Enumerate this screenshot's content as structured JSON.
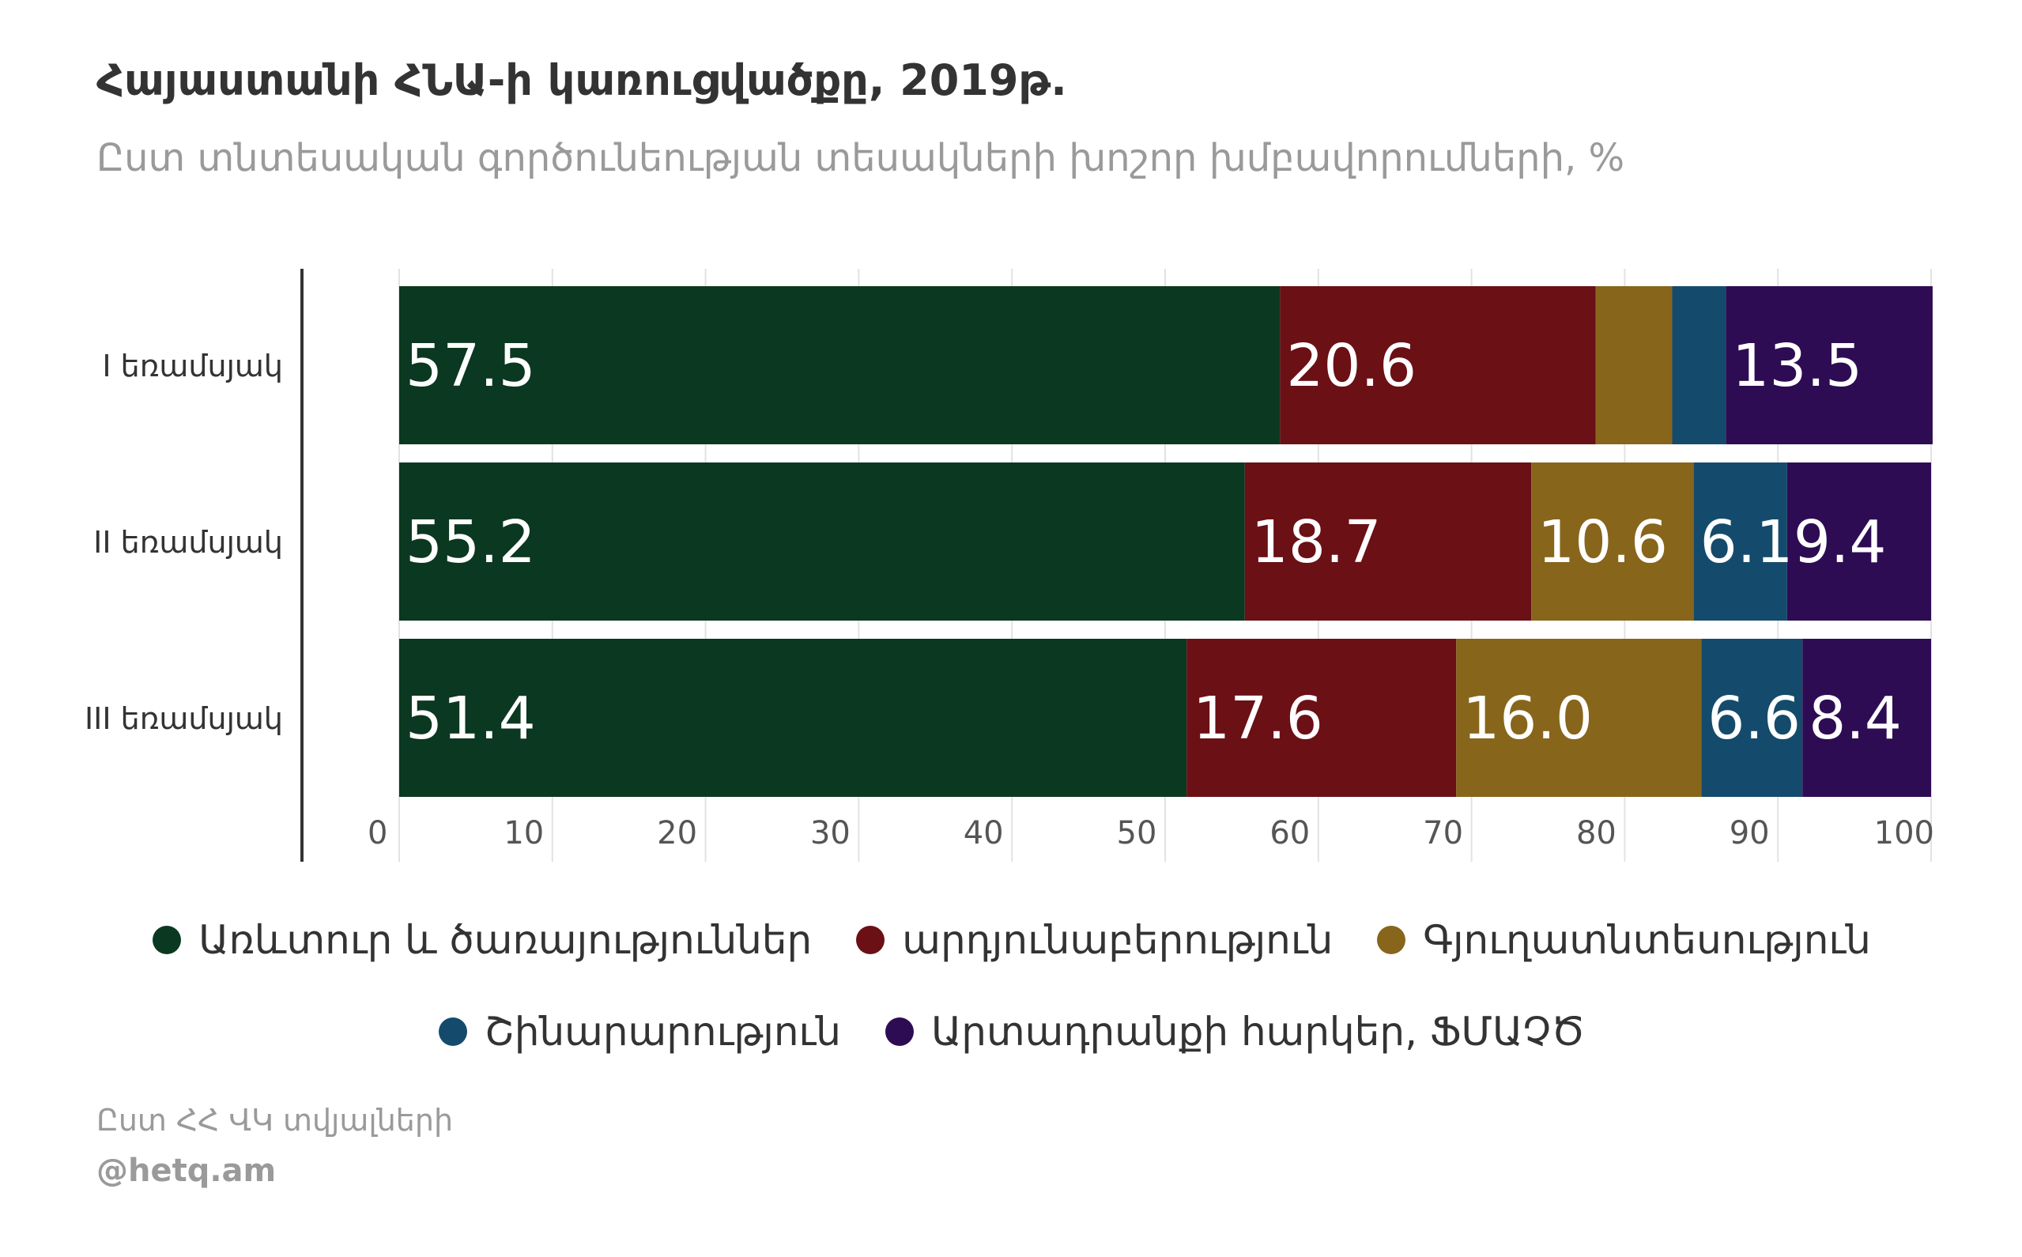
{
  "title": "Հայաստանի ՀՆԱ-ի կառուցվածքը, 2019թ.",
  "subtitle": "Ըստ տնտեսական գործունեության տեսակների խոշոր խմբավորումների, %",
  "source": "Ըստ ՀՀ ՎԿ տվյալների",
  "credit": "@hetq.am",
  "chart_data": {
    "type": "bar",
    "orientation": "horizontal",
    "stacked": true,
    "categories": [
      "I եռամսյակ",
      "II եռամսյակ",
      "III եռամսյակ"
    ],
    "series": [
      {
        "name": "Առևտուր և ծառայություններ",
        "color": "#0b3820",
        "values": [
          57.5,
          55.2,
          51.4
        ],
        "labels": [
          "57.5",
          "55.2",
          "51.4"
        ]
      },
      {
        "name": "արդյունաբերություն",
        "color": "#6b1015",
        "values": [
          20.6,
          18.7,
          17.6
        ],
        "labels": [
          "20.6",
          "18.7",
          "17.6"
        ]
      },
      {
        "name": "Գյուղատնտեսություն",
        "color": "#87651b",
        "values": [
          5.0,
          10.6,
          16.0
        ],
        "labels": [
          "",
          "10.6",
          "16.0"
        ]
      },
      {
        "name": "Շինարարություն",
        "color": "#144b6c",
        "values": [
          3.5,
          6.1,
          6.6
        ],
        "labels": [
          "",
          "6.1",
          "6.6"
        ]
      },
      {
        "name": "Արտադրանքի հարկեր, ՖՄԱՉԾ",
        "color": "#2e0c54",
        "values": [
          13.5,
          9.4,
          8.4
        ],
        "labels": [
          "13.5",
          "9.4",
          "8.4"
        ]
      }
    ],
    "xlim": [
      0,
      100
    ],
    "xticks": [
      "0",
      "10",
      "20",
      "30",
      "40",
      "50",
      "60",
      "70",
      "80",
      "90",
      "100"
    ],
    "grid": true,
    "legend": "bottom"
  }
}
